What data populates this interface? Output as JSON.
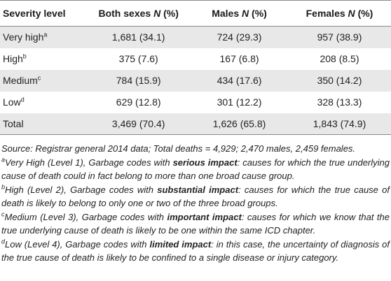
{
  "table": {
    "headers": {
      "col1": "Severity level",
      "col2": "Both sexes",
      "col3": "Males",
      "col4": "Females",
      "n_label": "N",
      "pct_label": "(%)"
    },
    "rows": [
      {
        "level": "Very high",
        "sup": "a",
        "both": "1,681 (34.1)",
        "males": "724 (29.3)",
        "females": "957 (38.9)"
      },
      {
        "level": "High",
        "sup": "b",
        "both": "375 (7.6)",
        "males": "167 (6.8)",
        "females": "208 (8.5)"
      },
      {
        "level": "Medium",
        "sup": "c",
        "both": "784 (15.9)",
        "males": "434 (17.6)",
        "females": "350 (14.2)"
      },
      {
        "level": "Low",
        "sup": "d",
        "both": "629 (12.8)",
        "males": "301 (12.2)",
        "females": "328 (13.3)"
      },
      {
        "level": "Total",
        "sup": "",
        "both": "3,469 (70.4)",
        "males": "1,626 (65.8)",
        "females": "1,843 (74.9)"
      }
    ]
  },
  "notes": {
    "source": "Source: Registrar general 2014 data; Total deaths = 4,929; 2,470 males, 2,459 females.",
    "a": {
      "sup": "a",
      "pre": "Very High (Level 1), Garbage codes with ",
      "bold": "serious impact",
      "post": ": causes for which the true underlying cause of death could in fact belong to more than one broad cause group."
    },
    "b": {
      "sup": "b",
      "pre": "High (Level 2), Garbage codes with ",
      "bold": "substantial impact",
      "post": ": causes for which the true cause of death is likely to belong to only one or two of the three broad groups."
    },
    "c": {
      "sup": "c",
      "pre": "Medium (Level 3), Garbage codes with ",
      "bold": "important impact",
      "post": ": causes for which we know that the true underlying cause of death is likely to be one within the same ICD chapter."
    },
    "d": {
      "sup": "d",
      "pre": "Low (Level 4), Garbage codes with ",
      "bold": "limited impact",
      "post": ": in this case, the uncertainty of diagnosis of the true cause of death is likely to be confined to a single disease or injury category."
    }
  }
}
